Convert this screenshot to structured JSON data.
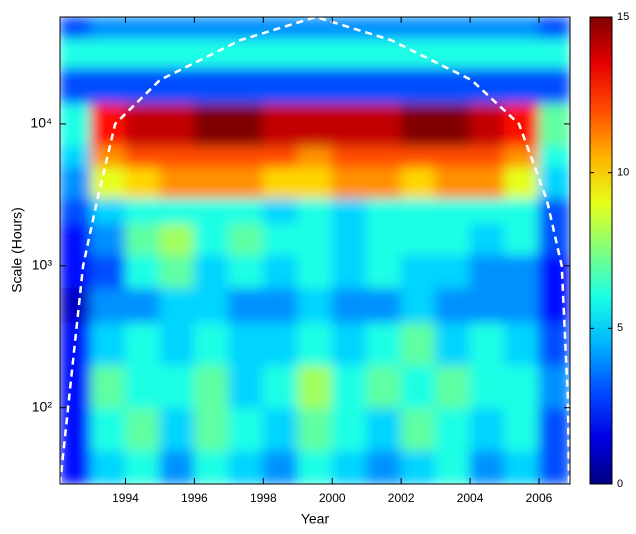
{
  "chart_data": {
    "type": "heatmap",
    "xlabel": "Year",
    "ylabel": "Scale (Hours)",
    "xlim": [
      1992.1,
      2006.9
    ],
    "ylim": [
      29,
      56700
    ],
    "ylog": true,
    "xticks": [
      1994,
      1996,
      1998,
      2000,
      2002,
      2004,
      2006
    ],
    "yticks": [
      {
        "value": 100,
        "label": "10²"
      },
      {
        "value": 1000,
        "label": "10³"
      },
      {
        "value": 10000,
        "label": "10⁴"
      }
    ],
    "xbins": [
      1992.1,
      1993,
      1994,
      1995,
      1996,
      1997,
      1998,
      1999,
      2000,
      2001,
      2002,
      2003,
      2004,
      2005,
      2006,
      2006.9
    ],
    "ybins": [
      29,
      50,
      100,
      200,
      400,
      700,
      1200,
      2000,
      3000,
      5000,
      7000,
      14000,
      25000,
      40000,
      56700
    ],
    "z": [
      [
        2,
        5,
        6,
        4,
        6,
        5,
        4,
        6,
        5,
        4,
        5,
        6,
        4,
        5,
        3
      ],
      [
        2,
        6,
        7,
        5,
        7,
        6,
        5,
        7,
        6,
        5,
        7,
        6,
        5,
        6,
        3
      ],
      [
        2,
        7,
        6,
        6,
        7,
        5,
        6,
        8,
        6,
        7,
        6,
        7,
        6,
        6,
        4
      ],
      [
        2,
        5,
        6,
        5,
        6,
        5,
        5,
        6,
        5,
        6,
        7,
        5,
        6,
        5,
        3
      ],
      [
        1,
        4,
        4,
        5,
        5,
        4,
        4,
        5,
        4,
        4,
        5,
        4,
        4,
        4,
        2
      ],
      [
        2,
        3,
        6,
        7,
        5,
        6,
        5,
        6,
        5,
        6,
        5,
        5,
        4,
        4,
        2
      ],
      [
        2,
        4,
        7,
        8,
        6,
        7,
        6,
        6,
        5,
        6,
        6,
        6,
        5,
        6,
        3
      ],
      [
        3,
        5,
        6,
        6,
        6,
        6,
        5,
        6,
        5,
        6,
        6,
        6,
        6,
        6,
        3
      ],
      [
        4,
        9,
        10,
        11,
        11,
        11,
        10,
        10,
        11,
        11,
        10,
        11,
        11,
        9,
        5
      ],
      [
        5,
        11,
        12,
        12,
        12,
        12,
        12,
        11,
        12,
        12,
        12,
        12,
        12,
        11,
        6
      ],
      [
        6,
        13,
        14,
        14,
        15,
        15,
        14,
        14,
        14,
        14,
        15,
        15,
        14,
        13,
        7
      ],
      [
        3,
        3,
        3,
        3,
        3,
        3,
        3,
        3,
        3,
        3,
        3,
        3,
        3,
        3,
        3
      ],
      [
        6,
        6,
        6,
        6,
        6,
        6,
        6,
        6,
        6,
        6,
        6,
        6,
        6,
        6,
        6
      ],
      [
        3,
        4,
        4,
        4,
        4,
        4,
        4,
        4,
        4,
        4,
        4,
        4,
        4,
        4,
        3
      ]
    ],
    "colormap": "jet",
    "clim": [
      0,
      15
    ],
    "cticks": [
      0,
      5,
      10,
      15
    ],
    "coi": {
      "color": "#ffffff",
      "x": [
        1992.1,
        1992.77,
        1993.18,
        1993.7,
        1995.0,
        1997.34,
        1999.53,
        2001.7,
        2004.04,
        2005.42,
        2006.23,
        2006.66,
        2006.84,
        2006.87
      ],
      "y": [
        29,
        1000,
        2900,
        10000,
        20400,
        39000,
        56700,
        39000,
        20400,
        10000,
        2900,
        1000,
        115,
        29
      ]
    }
  }
}
